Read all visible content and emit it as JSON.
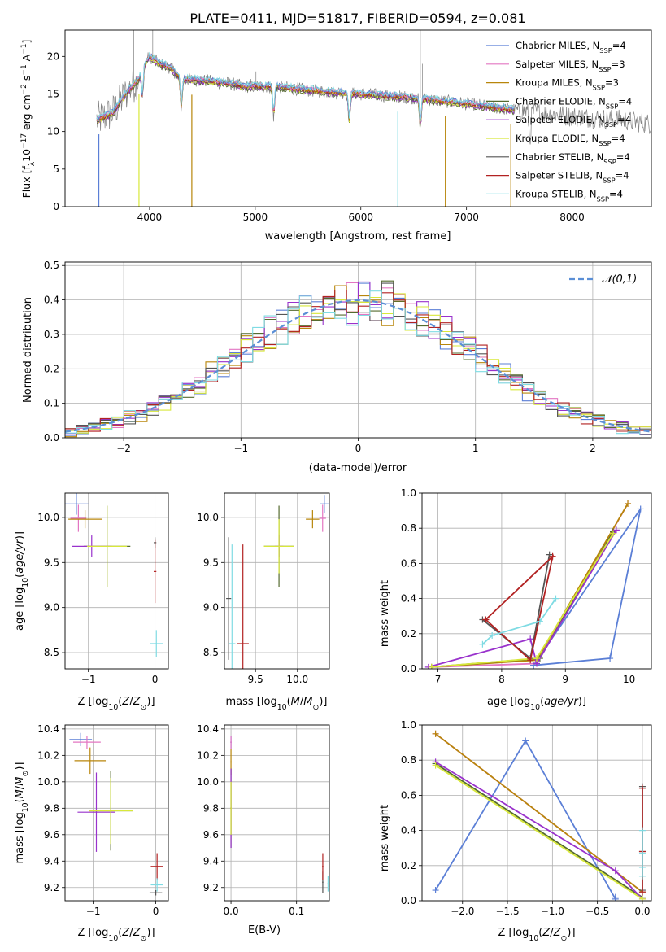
{
  "figure_title": "PLATE=0411, MJD=51817, FIBERID=0594, z=0.081",
  "models": [
    {
      "name": "Chabrier MILES",
      "nssp": "4",
      "color": "#5b7fd6"
    },
    {
      "name": "Salpeter MILES",
      "nssp": "3",
      "color": "#e376c2"
    },
    {
      "name": "Kroupa MILES",
      "nssp": "3",
      "color": "#b8860b"
    },
    {
      "name": "Chabrier ELODIE",
      "nssp": "4",
      "color": "#556b2f"
    },
    {
      "name": "Salpeter ELODIE",
      "nssp": "4",
      "color": "#9932cc"
    },
    {
      "name": "Kroupa ELODIE",
      "nssp": "4",
      "color": "#d8e83a"
    },
    {
      "name": "Chabrier STELIB",
      "nssp": "4",
      "color": "#555555"
    },
    {
      "name": "Salpeter STELIB",
      "nssp": "4",
      "color": "#b22222"
    },
    {
      "name": "Kroupa STELIB",
      "nssp": "4",
      "color": "#7fdbe3"
    }
  ],
  "chart_data": [
    {
      "id": "spectrum",
      "type": "line",
      "xlabel": "wavelength [Angstrom, rest frame]",
      "ylabel": "Flux [f_λ 10^-17 erg cm^-2 s^-1 A^-1]",
      "xlim": [
        3200,
        8750
      ],
      "ylim": [
        0,
        23.5
      ],
      "xticks": [
        4000,
        5000,
        6000,
        7000,
        8000
      ],
      "yticks": [
        0,
        5,
        10,
        15,
        20
      ],
      "legend": "top-right",
      "data_color": "#808080",
      "continuum": {
        "x": [
          3500,
          3650,
          3800,
          3900,
          3950,
          4000,
          4100,
          4200,
          4300,
          4500,
          4700,
          4900,
          5200,
          5500,
          6000,
          6500,
          7000,
          7500,
          8000,
          8500,
          8750
        ],
        "y": [
          11.5,
          12.5,
          15.5,
          17,
          19,
          20,
          19,
          18.5,
          17,
          16.8,
          16.5,
          16,
          16,
          15.5,
          15,
          14.5,
          13.7,
          12.8,
          12,
          11.5,
          11
        ]
      },
      "absorption_lines": [
        3933,
        4300,
        5175,
        5890,
        6563,
        7600
      ],
      "model_cutoffs": [
        {
          "x": 3520,
          "model": 0
        },
        {
          "x": 3900,
          "model": 5
        },
        {
          "x": 4400,
          "model": 2
        },
        {
          "x": 6350,
          "model": 8
        },
        {
          "x": 6800,
          "model": 2
        },
        {
          "x": 7420,
          "model": 2
        }
      ],
      "emission_spikes": [
        {
          "x": 6563,
          "y": 23.5
        },
        {
          "x": 6583,
          "y": 19
        },
        {
          "x": 4960,
          "y": 17
        },
        {
          "x": 5007,
          "y": 18
        },
        {
          "x": 4030,
          "y": 23.5
        },
        {
          "x": 4090,
          "y": 23.5
        },
        {
          "x": 3850,
          "y": 23.5
        }
      ]
    },
    {
      "id": "residual_hist",
      "type": "histogram",
      "xlabel": "(data-model)/error",
      "ylabel": "Normed distribution",
      "xlim": [
        -2.5,
        2.5
      ],
      "ylim": [
        0,
        0.51
      ],
      "xticks": [
        -2,
        -1,
        0,
        1,
        2
      ],
      "yticks": [
        0.0,
        0.1,
        0.2,
        0.3,
        0.4,
        0.5
      ],
      "grid": true,
      "legend": "top-right",
      "reference_label": "𝒩(0,1)",
      "reference_color": "#5b8fd6",
      "bin_width": 0.1
    },
    {
      "id": "age_vs_Z",
      "type": "errorbar",
      "xlabel": "Z [log10(Z/Z⊙)]",
      "ylabel": "age [log10(age/yr)]",
      "xlim": [
        -1.35,
        0.2
      ],
      "ylim": [
        8.32,
        10.27
      ],
      "xticks": [
        -1,
        0
      ],
      "yticks": [
        8.5,
        9.0,
        9.5,
        10.0
      ],
      "grid": true,
      "points": [
        {
          "model": 0,
          "x": -1.18,
          "xerr": 0.18,
          "y": 10.15,
          "yerr": 0.12
        },
        {
          "model": 1,
          "x": -1.15,
          "xerr": 0.12,
          "y": 9.99,
          "yerr": 0.15
        },
        {
          "model": 2,
          "x": -1.05,
          "xerr": 0.25,
          "y": 9.98,
          "yerr": 0.1
        },
        {
          "model": 3,
          "x": -0.72,
          "xerr": 0.35,
          "y": 9.68,
          "yerr": 0.45
        },
        {
          "model": 4,
          "x": -0.95,
          "xerr": 0.3,
          "y": 9.68,
          "yerr": 0.12
        },
        {
          "model": 5,
          "x": -0.72,
          "xerr": 0.3,
          "y": 9.68,
          "yerr": 0.45
        },
        {
          "model": 6,
          "x": 0.0,
          "xerr": 0.02,
          "y": 9.72,
          "yerr": 0.06
        },
        {
          "model": 7,
          "x": 0.0,
          "xerr": 0.02,
          "y": 9.4,
          "yerr": 0.35
        },
        {
          "model": 8,
          "x": 0.02,
          "xerr": 0.1,
          "y": 8.6,
          "yerr": 0.15
        }
      ]
    },
    {
      "id": "age_vs_mass",
      "type": "errorbar",
      "xlabel": "mass [log10(M/M⊙)]",
      "ylabel": "",
      "xlim": [
        9.13,
        10.38
      ],
      "ylim": [
        8.32,
        10.27
      ],
      "xticks": [
        9.5,
        10.0
      ],
      "yticks": [
        8.5,
        9.0,
        9.5,
        10.0
      ],
      "grid": true,
      "points": [
        {
          "model": 0,
          "x": 10.32,
          "xerr": 0.05,
          "y": 10.15,
          "yerr": 0.1
        },
        {
          "model": 1,
          "x": 10.3,
          "xerr": 0.04,
          "y": 9.99,
          "yerr": 0.15
        },
        {
          "model": 2,
          "x": 10.18,
          "xerr": 0.08,
          "y": 9.98,
          "yerr": 0.1
        },
        {
          "model": 3,
          "x": 9.78,
          "xerr": 0.18,
          "y": 9.68,
          "yerr": 0.45
        },
        {
          "model": 4,
          "x": 9.78,
          "xerr": 0.05,
          "y": 9.68,
          "yerr": 0.12
        },
        {
          "model": 5,
          "x": 9.78,
          "xerr": 0.18,
          "y": 9.68,
          "yerr": 0.3
        },
        {
          "model": 6,
          "x": 9.18,
          "xerr": 0.03,
          "y": 9.1,
          "yerr": 0.68
        },
        {
          "model": 7,
          "x": 9.35,
          "xerr": 0.07,
          "y": 8.6,
          "yerr": 1.1
        },
        {
          "model": 8,
          "x": 9.22,
          "xerr": 0.04,
          "y": 8.6,
          "yerr": 1.1
        }
      ]
    },
    {
      "id": "massweight_vs_age",
      "type": "line",
      "xlabel": "age [log10(age/yr)]",
      "ylabel": "mass weight",
      "xlim": [
        6.75,
        10.35
      ],
      "ylim": [
        0,
        1.0
      ],
      "xticks": [
        7,
        8,
        9,
        10
      ],
      "yticks": [
        0.0,
        0.2,
        0.4,
        0.6,
        0.8,
        1.0
      ],
      "grid": true,
      "series": [
        {
          "model": 0,
          "x": [
            8.5,
            9.7,
            10.18,
            8.5
          ],
          "y": [
            0.02,
            0.06,
            0.91,
            0.02
          ]
        },
        {
          "model": 1,
          "x": [
            6.9,
            8.55,
            9.98
          ],
          "y": [
            0.01,
            0.03,
            0.94
          ]
        },
        {
          "model": 2,
          "x": [
            6.9,
            8.55,
            9.98
          ],
          "y": [
            0.01,
            0.05,
            0.94
          ]
        },
        {
          "model": 3,
          "x": [
            6.9,
            8.6,
            9.75
          ],
          "y": [
            0.01,
            0.06,
            0.78
          ]
        },
        {
          "model": 4,
          "x": [
            6.85,
            8.45,
            8.55,
            9.8
          ],
          "y": [
            0.01,
            0.17,
            0.03,
            0.79
          ]
        },
        {
          "model": 5,
          "x": [
            6.9,
            8.55,
            9.75
          ],
          "y": [
            0.01,
            0.06,
            0.77
          ]
        },
        {
          "model": 6,
          "x": [
            7.7,
            8.45,
            8.75
          ],
          "y": [
            0.28,
            0.06,
            0.65
          ]
        },
        {
          "model": 7,
          "x": [
            7.75,
            8.45,
            8.8,
            7.75
          ],
          "y": [
            0.28,
            0.05,
            0.64,
            0.28
          ]
        },
        {
          "model": 8,
          "x": [
            7.7,
            7.85,
            8.6,
            8.85
          ],
          "y": [
            0.14,
            0.19,
            0.27,
            0.4
          ]
        }
      ]
    },
    {
      "id": "mass_vs_Z",
      "type": "errorbar",
      "xlabel": "Z [log10(Z/Z⊙)]",
      "ylabel": "mass [log10(M/M⊙)]",
      "xlim": [
        -1.45,
        0.2
      ],
      "ylim": [
        9.1,
        10.43
      ],
      "xticks": [
        -1,
        0
      ],
      "yticks": [
        9.2,
        9.4,
        9.6,
        9.8,
        10.0,
        10.2,
        10.4
      ],
      "grid": true,
      "points": [
        {
          "model": 0,
          "x": -1.2,
          "xerr": 0.18,
          "y": 10.32,
          "yerr": 0.05
        },
        {
          "model": 1,
          "x": -1.1,
          "xerr": 0.22,
          "y": 10.3,
          "yerr": 0.05
        },
        {
          "model": 2,
          "x": -1.05,
          "xerr": 0.25,
          "y": 10.16,
          "yerr": 0.1
        },
        {
          "model": 3,
          "x": -0.72,
          "xerr": 0.35,
          "y": 9.78,
          "yerr": 0.3
        },
        {
          "model": 4,
          "x": -0.95,
          "xerr": 0.3,
          "y": 9.77,
          "yerr": 0.3
        },
        {
          "model": 5,
          "x": -0.72,
          "xerr": 0.35,
          "y": 9.78,
          "yerr": 0.25
        },
        {
          "model": 6,
          "x": 0.0,
          "xerr": 0.1,
          "y": 9.16,
          "yerr": 0.02
        },
        {
          "model": 7,
          "x": 0.02,
          "xerr": 0.1,
          "y": 9.36,
          "yerr": 0.1
        },
        {
          "model": 8,
          "x": 0.02,
          "xerr": 0.1,
          "y": 9.22,
          "yerr": 0.05
        }
      ]
    },
    {
      "id": "mass_vs_EBV",
      "type": "errorbar",
      "xlabel": "E(B-V)",
      "ylabel": "",
      "xlim": [
        -0.01,
        0.15
      ],
      "ylim": [
        9.1,
        10.43
      ],
      "xticks": [
        0.0,
        0.1
      ],
      "yticks": [
        9.2,
        9.4,
        9.6,
        9.8,
        10.0,
        10.2,
        10.4
      ],
      "grid": true,
      "points": [
        {
          "model": 0,
          "x": 0.0,
          "xerr": 0.001,
          "y": 10.3,
          "yerr": 0.05
        },
        {
          "model": 1,
          "x": 0.0,
          "xerr": 0.001,
          "y": 10.3,
          "yerr": 0.05
        },
        {
          "model": 2,
          "x": 0.0,
          "xerr": 0.001,
          "y": 10.15,
          "yerr": 0.1
        },
        {
          "model": 3,
          "x": 0.0,
          "xerr": 0.001,
          "y": 9.8,
          "yerr": 0.3
        },
        {
          "model": 4,
          "x": 0.0,
          "xerr": 0.001,
          "y": 9.8,
          "yerr": 0.3
        },
        {
          "model": 5,
          "x": 0.0,
          "xerr": 0.001,
          "y": 9.8,
          "yerr": 0.2
        },
        {
          "model": 6,
          "x": 0.14,
          "xerr": 0.001,
          "y": 9.24,
          "yerr": 0.08
        },
        {
          "model": 7,
          "x": 0.14,
          "xerr": 0.001,
          "y": 9.36,
          "yerr": 0.1
        },
        {
          "model": 8,
          "x": 0.148,
          "xerr": 0.001,
          "y": 9.23,
          "yerr": 0.06
        }
      ]
    },
    {
      "id": "massweight_vs_Z",
      "type": "line",
      "xlabel": "Z [log10(Z/Z⊙)]",
      "ylabel": "mass weight",
      "xlim": [
        -2.45,
        0.1
      ],
      "ylim": [
        0,
        1.0
      ],
      "xticks": [
        -2.0,
        -1.5,
        -1.0,
        -0.5,
        0.0
      ],
      "yticks": [
        0.0,
        0.2,
        0.4,
        0.6,
        0.8,
        1.0
      ],
      "grid": true,
      "series": [
        {
          "model": 0,
          "x": [
            -2.3,
            -1.3,
            -0.3,
            -0.3
          ],
          "y": [
            0.06,
            0.91,
            0.01,
            0.02
          ]
        },
        {
          "model": 1,
          "x": [
            -2.3,
            0.0
          ],
          "y": [
            0.95,
            0.05
          ]
        },
        {
          "model": 2,
          "x": [
            -2.3,
            0.0
          ],
          "y": [
            0.95,
            0.05
          ]
        },
        {
          "model": 3,
          "x": [
            -2.3,
            0.0
          ],
          "y": [
            0.78,
            0.02
          ]
        },
        {
          "model": 4,
          "x": [
            -2.3,
            -0.3,
            0.0
          ],
          "y": [
            0.79,
            0.17,
            0.01
          ]
        },
        {
          "model": 5,
          "x": [
            -2.3,
            0.0
          ],
          "y": [
            0.77,
            0.01
          ]
        },
        {
          "model": 6,
          "x": [
            0.0,
            0.0,
            0.0
          ],
          "y": [
            0.65,
            0.28,
            0.06
          ]
        },
        {
          "model": 7,
          "x": [
            0.0,
            0.0,
            0.0
          ],
          "y": [
            0.64,
            0.28,
            0.05
          ]
        },
        {
          "model": 8,
          "x": [
            0.0,
            0.0,
            0.0,
            0.0
          ],
          "y": [
            0.4,
            0.27,
            0.19,
            0.14
          ]
        }
      ]
    }
  ]
}
